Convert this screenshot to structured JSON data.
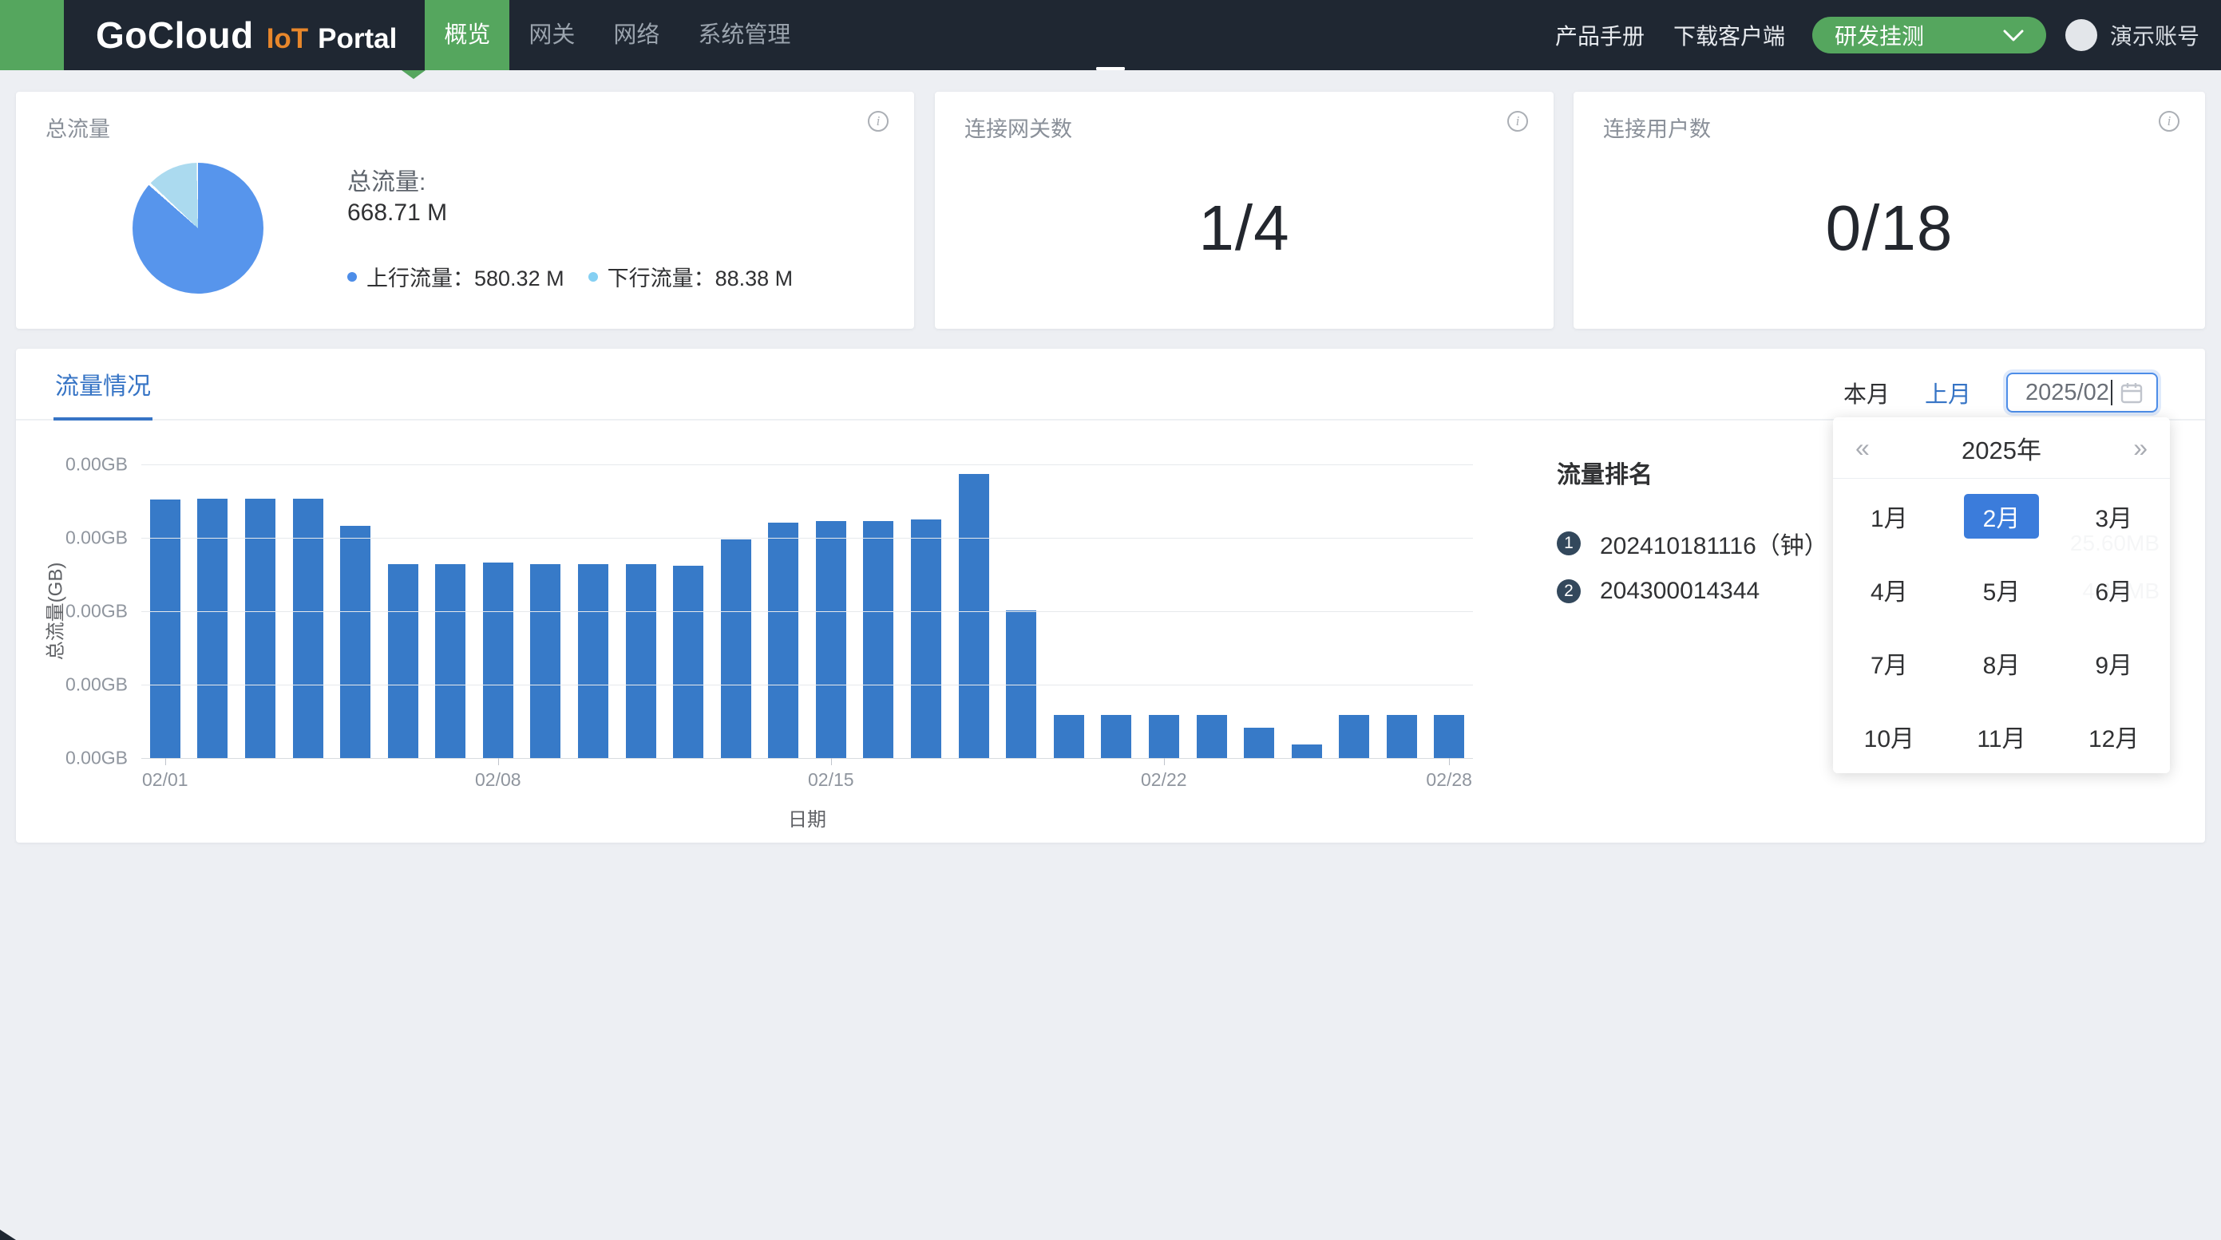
{
  "navbar": {
    "logo": {
      "brand": "GoCloud",
      "accent": "IoT",
      "rest": "Portal"
    },
    "tabs": [
      {
        "label": "概览",
        "active": true
      },
      {
        "label": "网关",
        "active": false
      },
      {
        "label": "网络",
        "active": false
      },
      {
        "label": "系统管理",
        "active": false
      }
    ],
    "links": [
      "产品手册",
      "下载客户端"
    ],
    "env_select": {
      "value": "研发挂测"
    },
    "account_label": "演示账号"
  },
  "cards": {
    "traffic": {
      "title": "总流量",
      "total_label": "总流量:",
      "total_value": "668.71 M",
      "pie": {
        "segments": [
          {
            "name": "上行流量",
            "value": "580.32 M",
            "pct": 86.8,
            "color": "#5795EC"
          },
          {
            "name": "下行流量",
            "value": "88.38 M",
            "pct": 13.2,
            "color": "#ABDAEF"
          }
        ]
      },
      "legend": [
        {
          "text": "上行流量：580.32 M",
          "dot": "#4D8DE8"
        },
        {
          "text": "下行流量：88.38 M",
          "dot": "#85D0F3"
        }
      ]
    },
    "gateways": {
      "title": "连接网关数",
      "value": "1/4"
    },
    "users": {
      "title": "连接用户数",
      "value": "0/18"
    }
  },
  "traffic_panel": {
    "tab_label": "流量情况",
    "range_buttons": [
      {
        "label": "本月",
        "active": false
      },
      {
        "label": "上月",
        "active": true
      }
    ],
    "date_input": {
      "value": "2025/02",
      "focused": true
    },
    "ranking": {
      "title": "流量排名",
      "items": [
        {
          "rank": "1",
          "label": "202410181116（钟）",
          "value": "25.60MB"
        },
        {
          "rank": "2",
          "label": "204300014344",
          "value": "4.15MB"
        }
      ]
    }
  },
  "chart_data": {
    "type": "bar",
    "title": "",
    "xlabel": "日期",
    "ylabel": "总流量(GB)",
    "bar_color": "#377AC8",
    "grid": true,
    "legend_position": "none",
    "y_tick_labels": [
      "0.00GB",
      "0.00GB",
      "0.00GB",
      "0.00GB",
      "0.00GB"
    ],
    "x_tick_labels": [
      {
        "label": "02/01",
        "index": 0
      },
      {
        "label": "02/08",
        "index": 7
      },
      {
        "label": "02/15",
        "index": 14
      },
      {
        "label": "02/22",
        "index": 21
      },
      {
        "label": "02/28",
        "index": 27
      }
    ],
    "categories": [
      "02/01",
      "02/02",
      "02/03",
      "02/04",
      "02/05",
      "02/06",
      "02/07",
      "02/08",
      "02/09",
      "02/10",
      "02/11",
      "02/12",
      "02/13",
      "02/14",
      "02/15",
      "02/16",
      "02/17",
      "02/18",
      "02/19",
      "02/20",
      "02/21",
      "02/22",
      "02/23",
      "02/24",
      "02/25",
      "02/26",
      "02/27",
      "02/28"
    ],
    "values_pct_of_axis": [
      88.0,
      88.2,
      88.2,
      88.4,
      79.2,
      66.0,
      66.0,
      66.5,
      66.0,
      66.0,
      66.0,
      65.5,
      74.5,
      80.3,
      80.7,
      80.7,
      81.2,
      96.7,
      50.4,
      14.7,
      14.7,
      14.7,
      14.7,
      10.4,
      4.5,
      14.7,
      14.7,
      14.7
    ]
  },
  "month_picker": {
    "year_label": "2025年",
    "prev_label": "«",
    "next_label": "»",
    "months": [
      "1月",
      "2月",
      "3月",
      "4月",
      "5月",
      "6月",
      "7月",
      "8月",
      "9月",
      "10月",
      "11月",
      "12月"
    ],
    "selected_index": 1
  }
}
